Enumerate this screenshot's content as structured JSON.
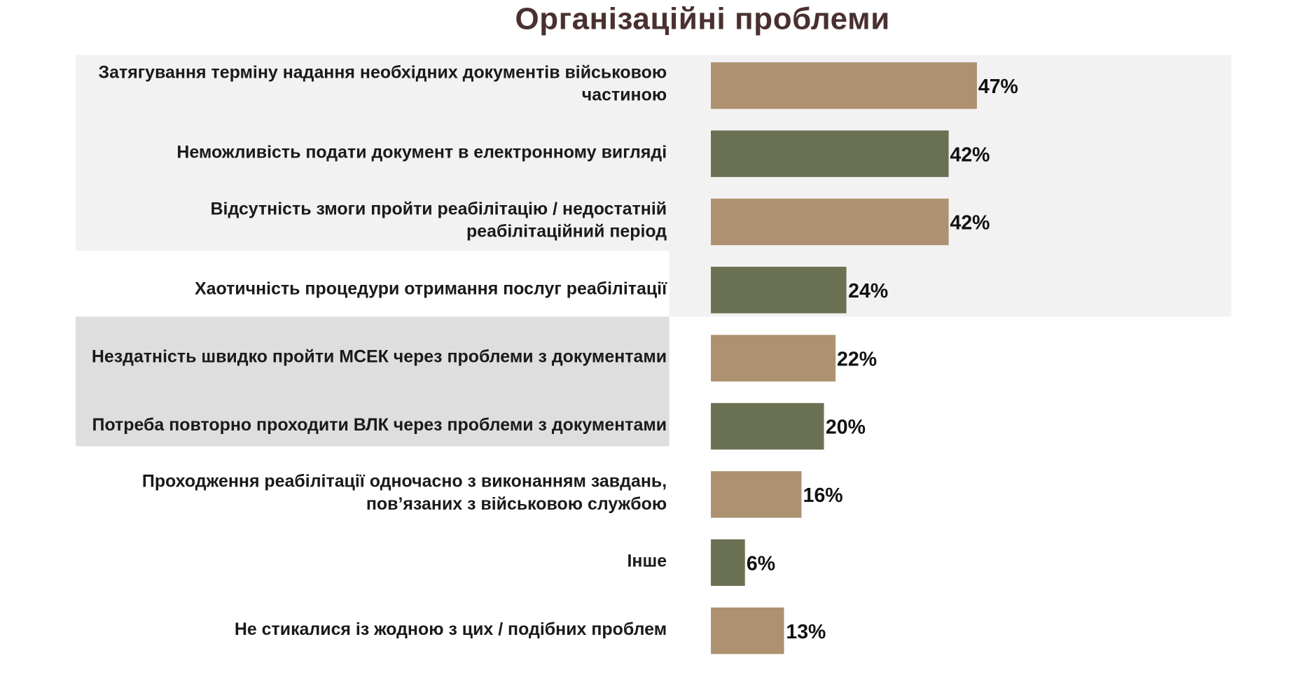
{
  "chart_data": {
    "type": "bar",
    "orientation": "horizontal",
    "title": "Організаційні проблеми",
    "categories": [
      "Затягування терміну надання необхідних документів військовою частиною",
      "Неможливість подати документ в електронному вигляді",
      "Відсутність змоги пройти реабілітацію / недостатній реабілітаційний період",
      "Хаотичність процедури отримання послуг реабілітації",
      "Нездатність швидко пройти МСЕК через проблеми з документами",
      "Потреба повторно проходити ВЛК через проблеми з документами",
      "Проходження реабілітації одночасно з виконанням завдань, пов’язаних з військовою службою",
      "Інше",
      "Не стикалися із жодною з цих / подібних проблем"
    ],
    "values": [
      47,
      42,
      42,
      24,
      22,
      20,
      16,
      6,
      13
    ],
    "value_labels": [
      "47%",
      "42%",
      "42%",
      "24%",
      "22%",
      "20%",
      "16%",
      "6%",
      "13%"
    ],
    "unit": "%",
    "grid": false,
    "colors": {
      "bar_alternate_1": "#ad9170",
      "bar_alternate_2": "#6a7052",
      "title": "#4a3030",
      "highlight_light": "#f2f2f2",
      "highlight_dark": "#dedede"
    }
  }
}
